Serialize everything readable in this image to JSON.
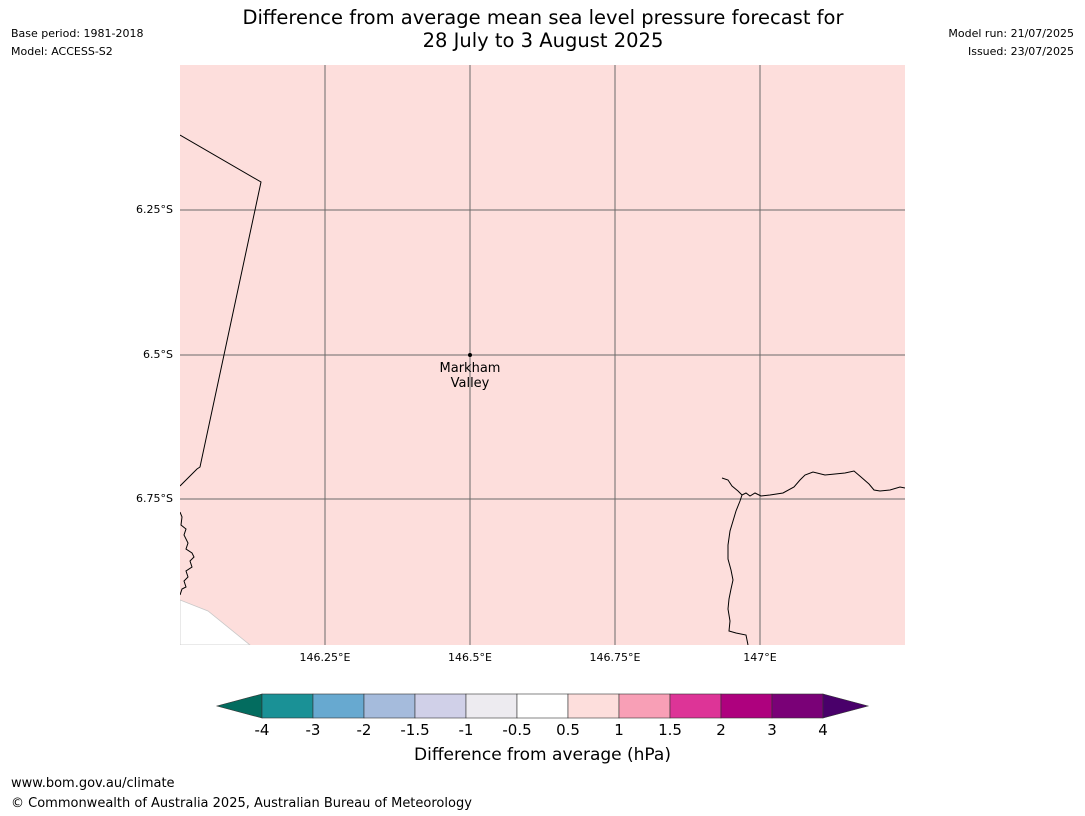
{
  "header": {
    "base_period": "Base period: 1981-2018",
    "model": "Model: ACCESS-S2",
    "title_line1": "Difference from average mean sea level pressure forecast for",
    "title_line2": "28 July to 3 August 2025",
    "model_run": "Model run: 21/07/2025",
    "issued": "Issued: 23/07/2025"
  },
  "map": {
    "fill_color": "#fddedc",
    "extent": {
      "lon": [
        146.0,
        147.25
      ],
      "lat": [
        -6.0,
        -7.0
      ]
    },
    "gridlines": {
      "lat": [
        {
          "value": -6.25,
          "label": "6.25°S"
        },
        {
          "value": -6.5,
          "label": "6.5°S"
        },
        {
          "value": -6.75,
          "label": "6.75°S"
        }
      ],
      "lon": [
        {
          "value": 146.25,
          "label": "146.25°E"
        },
        {
          "value": 146.5,
          "label": "146.5°E"
        },
        {
          "value": 146.75,
          "label": "146.75°E"
        },
        {
          "value": 147.0,
          "label": "147°E"
        }
      ]
    },
    "places": [
      {
        "name_line1": "Markham",
        "name_line2": "Valley",
        "lon": 146.5,
        "lat": -6.5
      }
    ]
  },
  "colorbar": {
    "label": "Difference from average (hPa)",
    "ticks": [
      "-4",
      "-3",
      "-2",
      "-1.5",
      "-1",
      "-0.5",
      "0.5",
      "1",
      "1.5",
      "2",
      "3",
      "4"
    ],
    "colors": [
      "#1a9196",
      "#67a9d0",
      "#a5bbdc",
      "#d0d0e8",
      "#edebf0",
      "#ffffff",
      "#fddedc",
      "#f89fb6",
      "#dd3497",
      "#ae017e",
      "#7a0177"
    ],
    "under_color": "#036c5f",
    "over_color": "#49006a"
  },
  "footer": {
    "url": "www.bom.gov.au/climate",
    "copyright": "© Commonwealth of Australia 2025, Australian Bureau of Meteorology"
  }
}
